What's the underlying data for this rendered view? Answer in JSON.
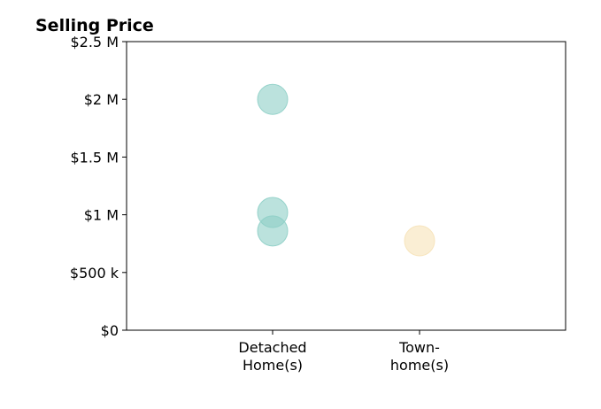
{
  "chart_data": {
    "type": "scatter",
    "title": "Selling Price",
    "xlabel": "",
    "ylabel": "",
    "categories": [
      "Detached\nHome(s)",
      "Town-\nhome(s)"
    ],
    "ylim": [
      0,
      2500000
    ],
    "yticks": [
      {
        "value": 0,
        "label": "$0"
      },
      {
        "value": 500000,
        "label": "$500 k"
      },
      {
        "value": 1000000,
        "label": "$1 M"
      },
      {
        "value": 1500000,
        "label": "$1.5 M"
      },
      {
        "value": 2000000,
        "label": "$2 M"
      },
      {
        "value": 2500000,
        "label": "$2.5 M"
      }
    ],
    "points": [
      {
        "category": "Detached\nHome(s)",
        "y": 2000000,
        "color": "#8ecfc6"
      },
      {
        "category": "Detached\nHome(s)",
        "y": 1020000,
        "color": "#8ecfc6"
      },
      {
        "category": "Detached\nHome(s)",
        "y": 860000,
        "color": "#8ecfc6"
      },
      {
        "category": "Town-\nhome(s)",
        "y": 775000,
        "color": "#f6e2b8"
      }
    ],
    "grid": false,
    "legend": "none"
  }
}
